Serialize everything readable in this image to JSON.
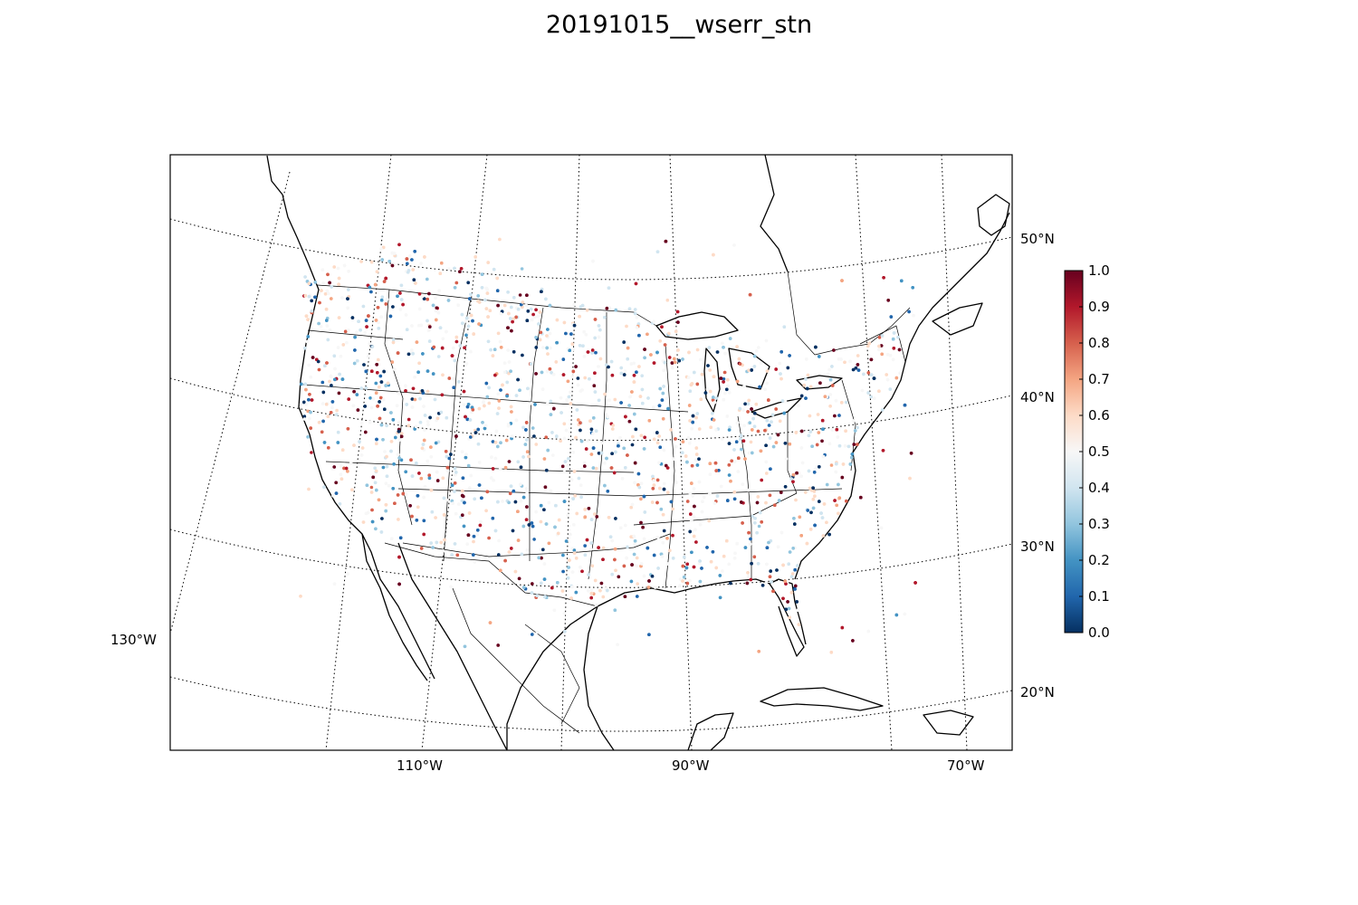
{
  "title": "20191015__wserr_stn",
  "map": {
    "projection": "lambert-conformal",
    "extent": "continental United States, southern Canada, northern Mexico, Caribbean",
    "meridian_labels": [
      "130°W",
      "110°W",
      "90°W",
      "70°W"
    ],
    "parallel_labels": [
      "50°N",
      "40°N",
      "30°N",
      "20°N"
    ],
    "coastline_color": "#000000",
    "gridline_style": "dotted"
  },
  "colorbar": {
    "colormap": "RdBu_r",
    "min": 0.0,
    "max": 1.0,
    "tick_labels": [
      "0.0",
      "0.1",
      "0.2",
      "0.3",
      "0.4",
      "0.5",
      "0.6",
      "0.7",
      "0.8",
      "0.9",
      "1.0"
    ],
    "colors": {
      "low": "#053061",
      "mid_low": "#4393c3",
      "mid": "#f7f7f7",
      "mid_high": "#f4a582",
      "high": "#67001f"
    }
  },
  "stations": {
    "description_values_range": [
      0.0,
      1.0
    ],
    "marker": "small filled circle"
  }
}
